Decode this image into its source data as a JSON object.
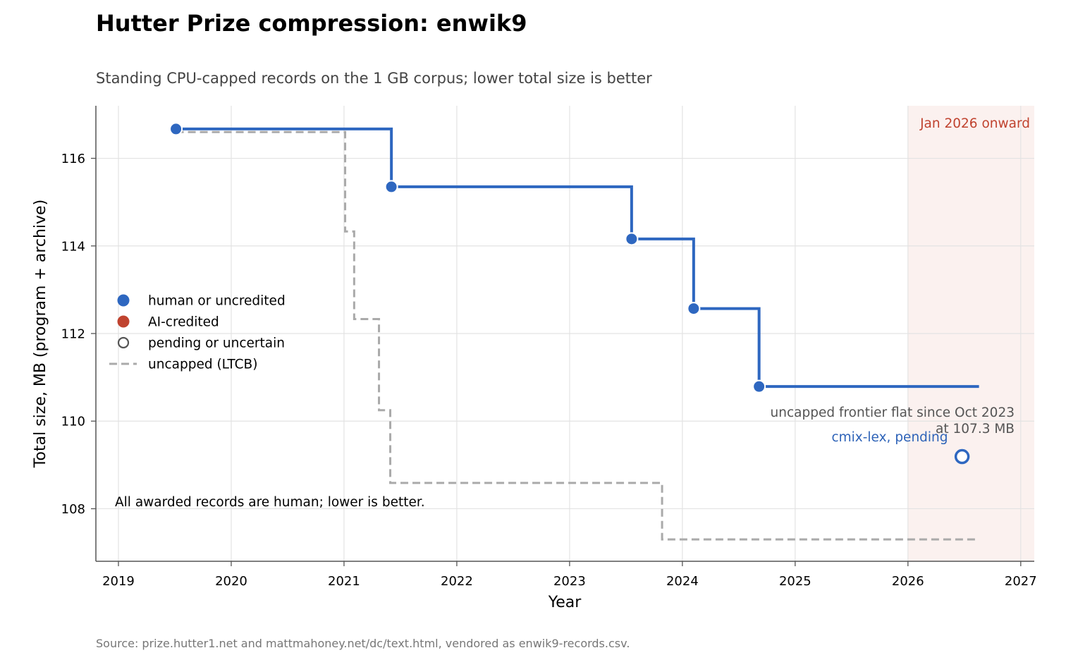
{
  "page": {
    "title": "Hutter Prize compression: enwik9",
    "subtitle": "Standing CPU-capped records on the 1 GB corpus; lower total size is better",
    "source": "Source: prize.hutter1.net and mattmahoney.net/dc/text.html, vendored as enwik9-records.csv."
  },
  "chart_data": {
    "type": "line",
    "xlabel": "Year",
    "ylabel": "Total size, MB (program + archive)",
    "xlim": [
      2018.8,
      2027.12
    ],
    "ylim": [
      106.8,
      117.2
    ],
    "xticks": [
      2019,
      2020,
      2021,
      2022,
      2023,
      2024,
      2025,
      2026,
      2027
    ],
    "yticks": [
      108,
      110,
      112,
      114,
      116
    ],
    "grid": true,
    "legend_position": "center-left",
    "colors": {
      "human": "#2e67c0",
      "ai": "#c0432f",
      "pending": "#555555",
      "uncapped": "#aaaaaa",
      "shade": "#fbf1ef"
    },
    "legend": [
      {
        "label": "human or uncredited",
        "marker": "filled",
        "color": "#2e67c0"
      },
      {
        "label": "AI-credited",
        "marker": "filled",
        "color": "#c0432f"
      },
      {
        "label": "pending or uncertain",
        "marker": "hollow",
        "color": "#555555"
      },
      {
        "label": "uncapped (LTCB)",
        "marker": "dashed",
        "color": "#aaaaaa"
      }
    ],
    "series": [
      {
        "role": "capped",
        "style": "step-solid",
        "points": [
          {
            "x": 2019.51,
            "y": 116.67
          },
          {
            "x": 2021.42,
            "y": 115.35
          },
          {
            "x": 2023.55,
            "y": 114.16
          },
          {
            "x": 2024.1,
            "y": 112.57
          },
          {
            "x": 2024.68,
            "y": 110.79
          }
        ],
        "end_x": 2026.63
      },
      {
        "role": "uncapped",
        "style": "step-dashed",
        "points": [
          {
            "x": 2019.51,
            "y": 116.6
          },
          {
            "x": 2021.01,
            "y": 114.33
          },
          {
            "x": 2021.09,
            "y": 112.33
          },
          {
            "x": 2021.31,
            "y": 110.25
          },
          {
            "x": 2021.41,
            "y": 108.59
          },
          {
            "x": 2023.82,
            "y": 107.3
          }
        ],
        "end_x": 2026.63
      }
    ],
    "pending_points": [
      {
        "x": 2026.48,
        "y": 109.19,
        "label": "cmix-lex, pending"
      }
    ],
    "shaded_region": {
      "x_start": 2026.0,
      "x_end": 2027.12,
      "label": "Jan 2026 onward"
    },
    "annotations": {
      "frontier_line1": "uncapped frontier flat since Oct 2023",
      "frontier_line2": "at 107.3 MB",
      "note": "All awarded records are human; lower is better."
    }
  }
}
